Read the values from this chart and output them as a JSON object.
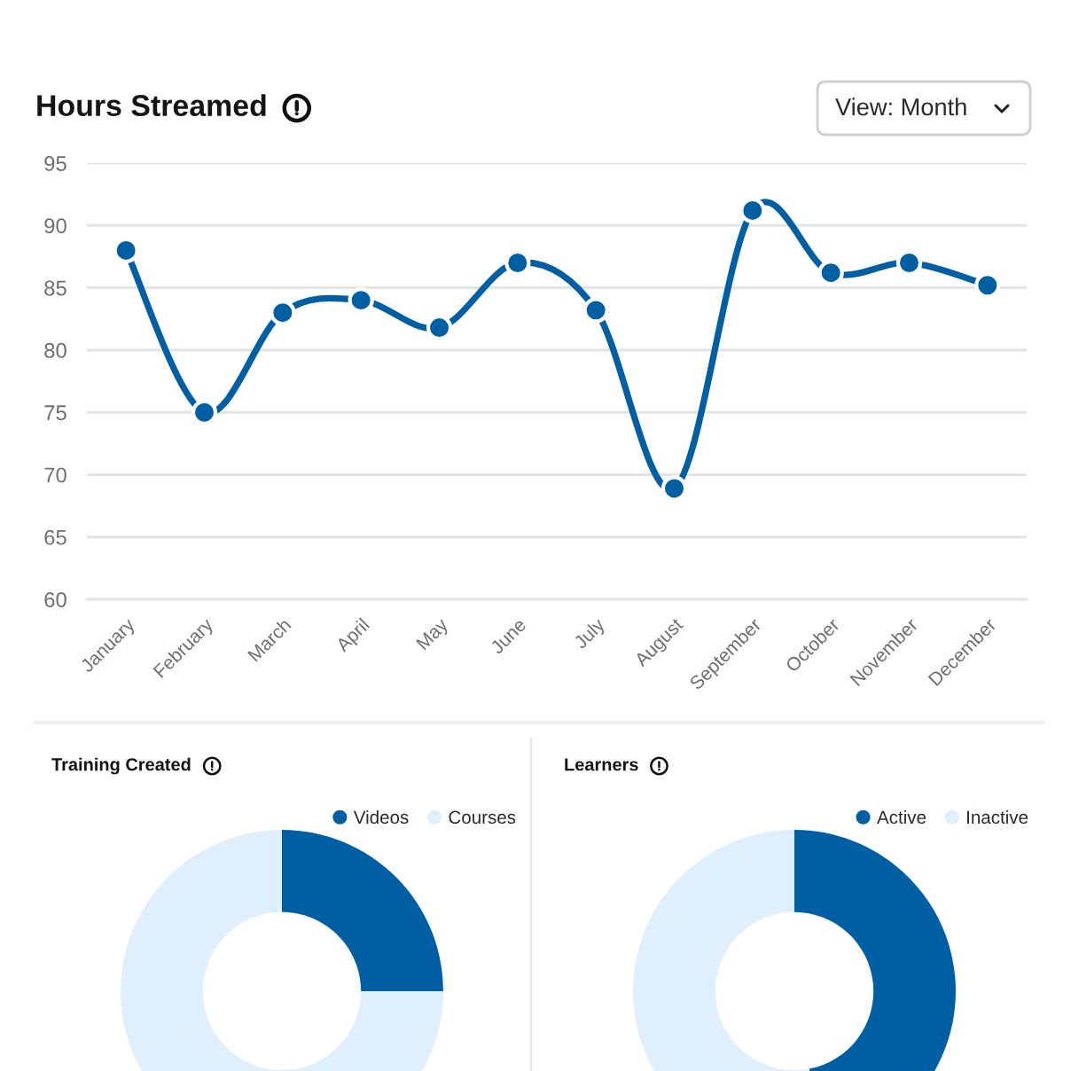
{
  "chart_data": [
    {
      "type": "line",
      "title": "Hours Streamed",
      "annotations": [
        "View: Month"
      ],
      "categories": [
        "January",
        "February",
        "March",
        "April",
        "May",
        "June",
        "July",
        "August",
        "September",
        "October",
        "November",
        "December"
      ],
      "series": [
        {
          "color": "#005fa3",
          "values": [
            88,
            75,
            83,
            84,
            81.8,
            87,
            83.2,
            68.9,
            91.2,
            86.2,
            87,
            85.2
          ]
        }
      ],
      "ylim": [
        60,
        95
      ],
      "yticks": [
        60,
        65,
        70,
        75,
        80,
        85,
        90,
        95
      ],
      "grid": "y",
      "marker": "circle",
      "line_style": "solid"
    },
    {
      "type": "donut",
      "title": "Training Created",
      "categories": [
        "Videos",
        "Courses"
      ],
      "values": [
        25,
        75
      ],
      "colors": [
        "#005fa3",
        "#dff0fc"
      ],
      "legend": "top right"
    },
    {
      "type": "donut",
      "title": "Learners",
      "categories": [
        "Active",
        "Inactive"
      ],
      "values": [
        47,
        53
      ],
      "colors": [
        "#005fa3",
        "#dff0fc"
      ],
      "legend": "top right"
    }
  ]
}
